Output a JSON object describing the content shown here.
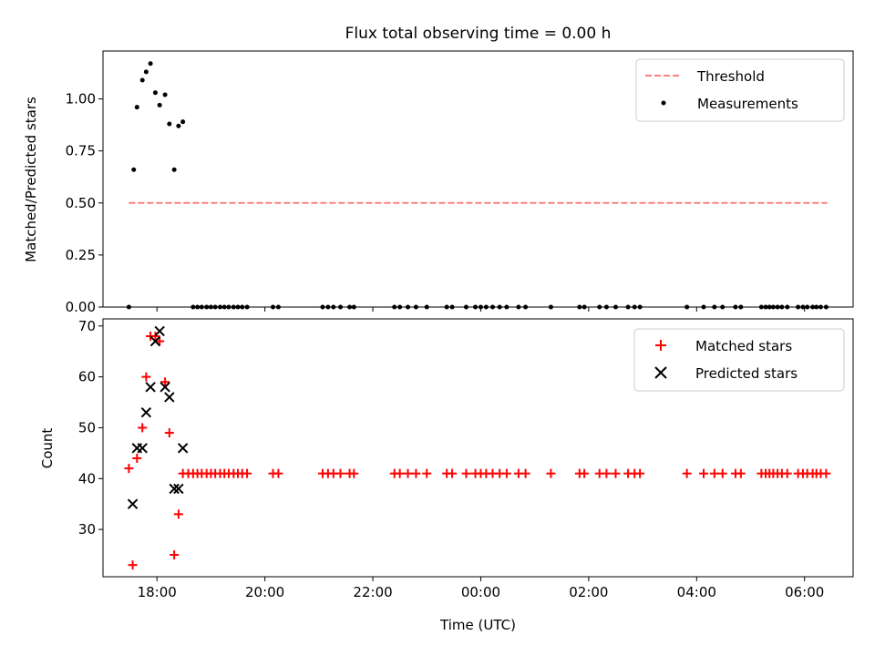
{
  "figure": {
    "title": "Flux total observing time = 0.00 h"
  },
  "chart_data": [
    {
      "type": "scatter",
      "panel": "top",
      "xlabel": "",
      "ylabel": "Matched/Predicted stars",
      "xlim": [
        -7.0,
        6.9
      ],
      "ylim": [
        0,
        1.23
      ],
      "yticks": [
        {
          "value": 0.0,
          "label": "0.00"
        },
        {
          "value": 0.25,
          "label": "0.25"
        },
        {
          "value": 0.5,
          "label": "0.50"
        },
        {
          "value": 0.75,
          "label": "0.75"
        },
        {
          "value": 1.0,
          "label": "1.00"
        }
      ],
      "legend": {
        "position": "top-right",
        "entries": [
          "Threshold",
          "Measurements"
        ]
      },
      "series": [
        {
          "name": "Threshold",
          "kind": "dashed-line",
          "color": "#ff7f7f",
          "x": [
            -6.52,
            6.42
          ],
          "y": [
            0.5,
            0.5
          ]
        },
        {
          "name": "Measurements",
          "kind": "dots",
          "color": "#000000",
          "points": [
            [
              -6.52,
              0.0
            ],
            [
              -6.43,
              0.66
            ],
            [
              -6.37,
              0.96
            ],
            [
              -6.27,
              1.09
            ],
            [
              -6.2,
              1.13
            ],
            [
              -6.12,
              1.17
            ],
            [
              -6.03,
              1.03
            ],
            [
              -5.95,
              0.97
            ],
            [
              -5.85,
              1.02
            ],
            [
              -5.77,
              0.88
            ],
            [
              -5.68,
              0.66
            ],
            [
              -5.6,
              0.87
            ],
            [
              -5.52,
              0.89
            ],
            [
              -5.33,
              0.0
            ],
            [
              -5.25,
              0.0
            ],
            [
              -5.17,
              0.0
            ],
            [
              -5.08,
              0.0
            ],
            [
              -5.0,
              0.0
            ],
            [
              -4.92,
              0.0
            ],
            [
              -4.83,
              0.0
            ],
            [
              -4.75,
              0.0
            ],
            [
              -4.67,
              0.0
            ],
            [
              -4.58,
              0.0
            ],
            [
              -4.5,
              0.0
            ],
            [
              -4.42,
              0.0
            ],
            [
              -4.33,
              0.0
            ],
            [
              -3.85,
              0.0
            ],
            [
              -3.75,
              0.0
            ],
            [
              -2.93,
              0.0
            ],
            [
              -2.83,
              0.0
            ],
            [
              -2.73,
              0.0
            ],
            [
              -2.6,
              0.0
            ],
            [
              -2.43,
              0.0
            ],
            [
              -2.35,
              0.0
            ],
            [
              -1.6,
              0.0
            ],
            [
              -1.5,
              0.0
            ],
            [
              -1.35,
              0.0
            ],
            [
              -1.2,
              0.0
            ],
            [
              -1.0,
              0.0
            ],
            [
              -0.63,
              0.0
            ],
            [
              -0.53,
              0.0
            ],
            [
              -0.27,
              0.0
            ],
            [
              -0.1,
              0.0
            ],
            [
              0.0,
              0.0
            ],
            [
              0.1,
              0.0
            ],
            [
              0.22,
              0.0
            ],
            [
              0.35,
              0.0
            ],
            [
              0.48,
              0.0
            ],
            [
              0.7,
              0.0
            ],
            [
              0.83,
              0.0
            ],
            [
              1.3,
              0.0
            ],
            [
              1.83,
              0.0
            ],
            [
              1.92,
              0.0
            ],
            [
              2.2,
              0.0
            ],
            [
              2.33,
              0.0
            ],
            [
              2.5,
              0.0
            ],
            [
              2.73,
              0.0
            ],
            [
              2.85,
              0.0
            ],
            [
              2.95,
              0.0
            ],
            [
              3.82,
              0.0
            ],
            [
              4.13,
              0.0
            ],
            [
              4.33,
              0.0
            ],
            [
              4.48,
              0.0
            ],
            [
              4.72,
              0.0
            ],
            [
              4.82,
              0.0
            ],
            [
              5.2,
              0.0
            ],
            [
              5.28,
              0.0
            ],
            [
              5.35,
              0.0
            ],
            [
              5.42,
              0.0
            ],
            [
              5.5,
              0.0
            ],
            [
              5.58,
              0.0
            ],
            [
              5.68,
              0.0
            ],
            [
              5.88,
              0.0
            ],
            [
              5.97,
              0.0
            ],
            [
              6.05,
              0.0
            ],
            [
              6.15,
              0.0
            ],
            [
              6.22,
              0.0
            ],
            [
              6.3,
              0.0
            ],
            [
              6.4,
              0.0
            ]
          ]
        }
      ]
    },
    {
      "type": "scatter",
      "panel": "bottom",
      "xlabel": "Time (UTC)",
      "ylabel": "Count",
      "xlim": [
        -7.0,
        6.9
      ],
      "ylim": [
        20.7,
        71.4
      ],
      "xticks": [
        {
          "value": -6,
          "label": "18:00"
        },
        {
          "value": -4,
          "label": "20:00"
        },
        {
          "value": -2,
          "label": "22:00"
        },
        {
          "value": 0,
          "label": "00:00"
        },
        {
          "value": 2,
          "label": "02:00"
        },
        {
          "value": 4,
          "label": "04:00"
        },
        {
          "value": 6,
          "label": "06:00"
        }
      ],
      "yticks": [
        {
          "value": 30,
          "label": "30"
        },
        {
          "value": 40,
          "label": "40"
        },
        {
          "value": 50,
          "label": "50"
        },
        {
          "value": 60,
          "label": "60"
        },
        {
          "value": 70,
          "label": "70"
        }
      ],
      "legend": {
        "position": "top-right",
        "entries": [
          "Matched stars",
          "Predicted stars"
        ]
      },
      "series": [
        {
          "name": "Matched stars",
          "kind": "plus",
          "color": "#ff0000",
          "points": [
            [
              -6.52,
              42
            ],
            [
              -6.45,
              23
            ],
            [
              -6.37,
              44
            ],
            [
              -6.27,
              50
            ],
            [
              -6.2,
              60
            ],
            [
              -6.12,
              68
            ],
            [
              -6.03,
              68
            ],
            [
              -5.95,
              67
            ],
            [
              -5.85,
              59
            ],
            [
              -5.77,
              49
            ],
            [
              -5.68,
              25
            ],
            [
              -5.6,
              33
            ],
            [
              -5.52,
              41
            ],
            [
              -5.42,
              41
            ],
            [
              -5.33,
              41
            ],
            [
              -5.25,
              41
            ],
            [
              -5.17,
              41
            ],
            [
              -5.08,
              41
            ],
            [
              -5.0,
              41
            ],
            [
              -4.92,
              41
            ],
            [
              -4.83,
              41
            ],
            [
              -4.75,
              41
            ],
            [
              -4.67,
              41
            ],
            [
              -4.58,
              41
            ],
            [
              -4.5,
              41
            ],
            [
              -4.42,
              41
            ],
            [
              -4.33,
              41
            ],
            [
              -3.85,
              41
            ],
            [
              -3.75,
              41
            ],
            [
              -2.93,
              41
            ],
            [
              -2.83,
              41
            ],
            [
              -2.73,
              41
            ],
            [
              -2.6,
              41
            ],
            [
              -2.43,
              41
            ],
            [
              -2.35,
              41
            ],
            [
              -1.6,
              41
            ],
            [
              -1.5,
              41
            ],
            [
              -1.35,
              41
            ],
            [
              -1.2,
              41
            ],
            [
              -1.0,
              41
            ],
            [
              -0.63,
              41
            ],
            [
              -0.53,
              41
            ],
            [
              -0.27,
              41
            ],
            [
              -0.1,
              41
            ],
            [
              0.0,
              41
            ],
            [
              0.1,
              41
            ],
            [
              0.22,
              41
            ],
            [
              0.35,
              41
            ],
            [
              0.48,
              41
            ],
            [
              0.7,
              41
            ],
            [
              0.83,
              41
            ],
            [
              1.3,
              41
            ],
            [
              1.83,
              41
            ],
            [
              1.92,
              41
            ],
            [
              2.2,
              41
            ],
            [
              2.33,
              41
            ],
            [
              2.5,
              41
            ],
            [
              2.73,
              41
            ],
            [
              2.85,
              41
            ],
            [
              2.95,
              41
            ],
            [
              3.82,
              41
            ],
            [
              4.13,
              41
            ],
            [
              4.33,
              41
            ],
            [
              4.48,
              41
            ],
            [
              4.72,
              41
            ],
            [
              4.82,
              41
            ],
            [
              5.2,
              41
            ],
            [
              5.28,
              41
            ],
            [
              5.35,
              41
            ],
            [
              5.42,
              41
            ],
            [
              5.5,
              41
            ],
            [
              5.58,
              41
            ],
            [
              5.68,
              41
            ],
            [
              5.88,
              41
            ],
            [
              5.97,
              41
            ],
            [
              6.05,
              41
            ],
            [
              6.15,
              41
            ],
            [
              6.22,
              41
            ],
            [
              6.3,
              41
            ],
            [
              6.4,
              41
            ]
          ]
        },
        {
          "name": "Predicted stars",
          "kind": "x",
          "color": "#000000",
          "points": [
            [
              -6.45,
              35
            ],
            [
              -6.37,
              46
            ],
            [
              -6.27,
              46
            ],
            [
              -6.2,
              53
            ],
            [
              -6.12,
              58
            ],
            [
              -6.03,
              67
            ],
            [
              -5.95,
              69
            ],
            [
              -5.85,
              58
            ],
            [
              -5.77,
              56
            ],
            [
              -5.68,
              38
            ],
            [
              -5.6,
              38
            ],
            [
              -5.52,
              46
            ]
          ]
        }
      ]
    }
  ]
}
